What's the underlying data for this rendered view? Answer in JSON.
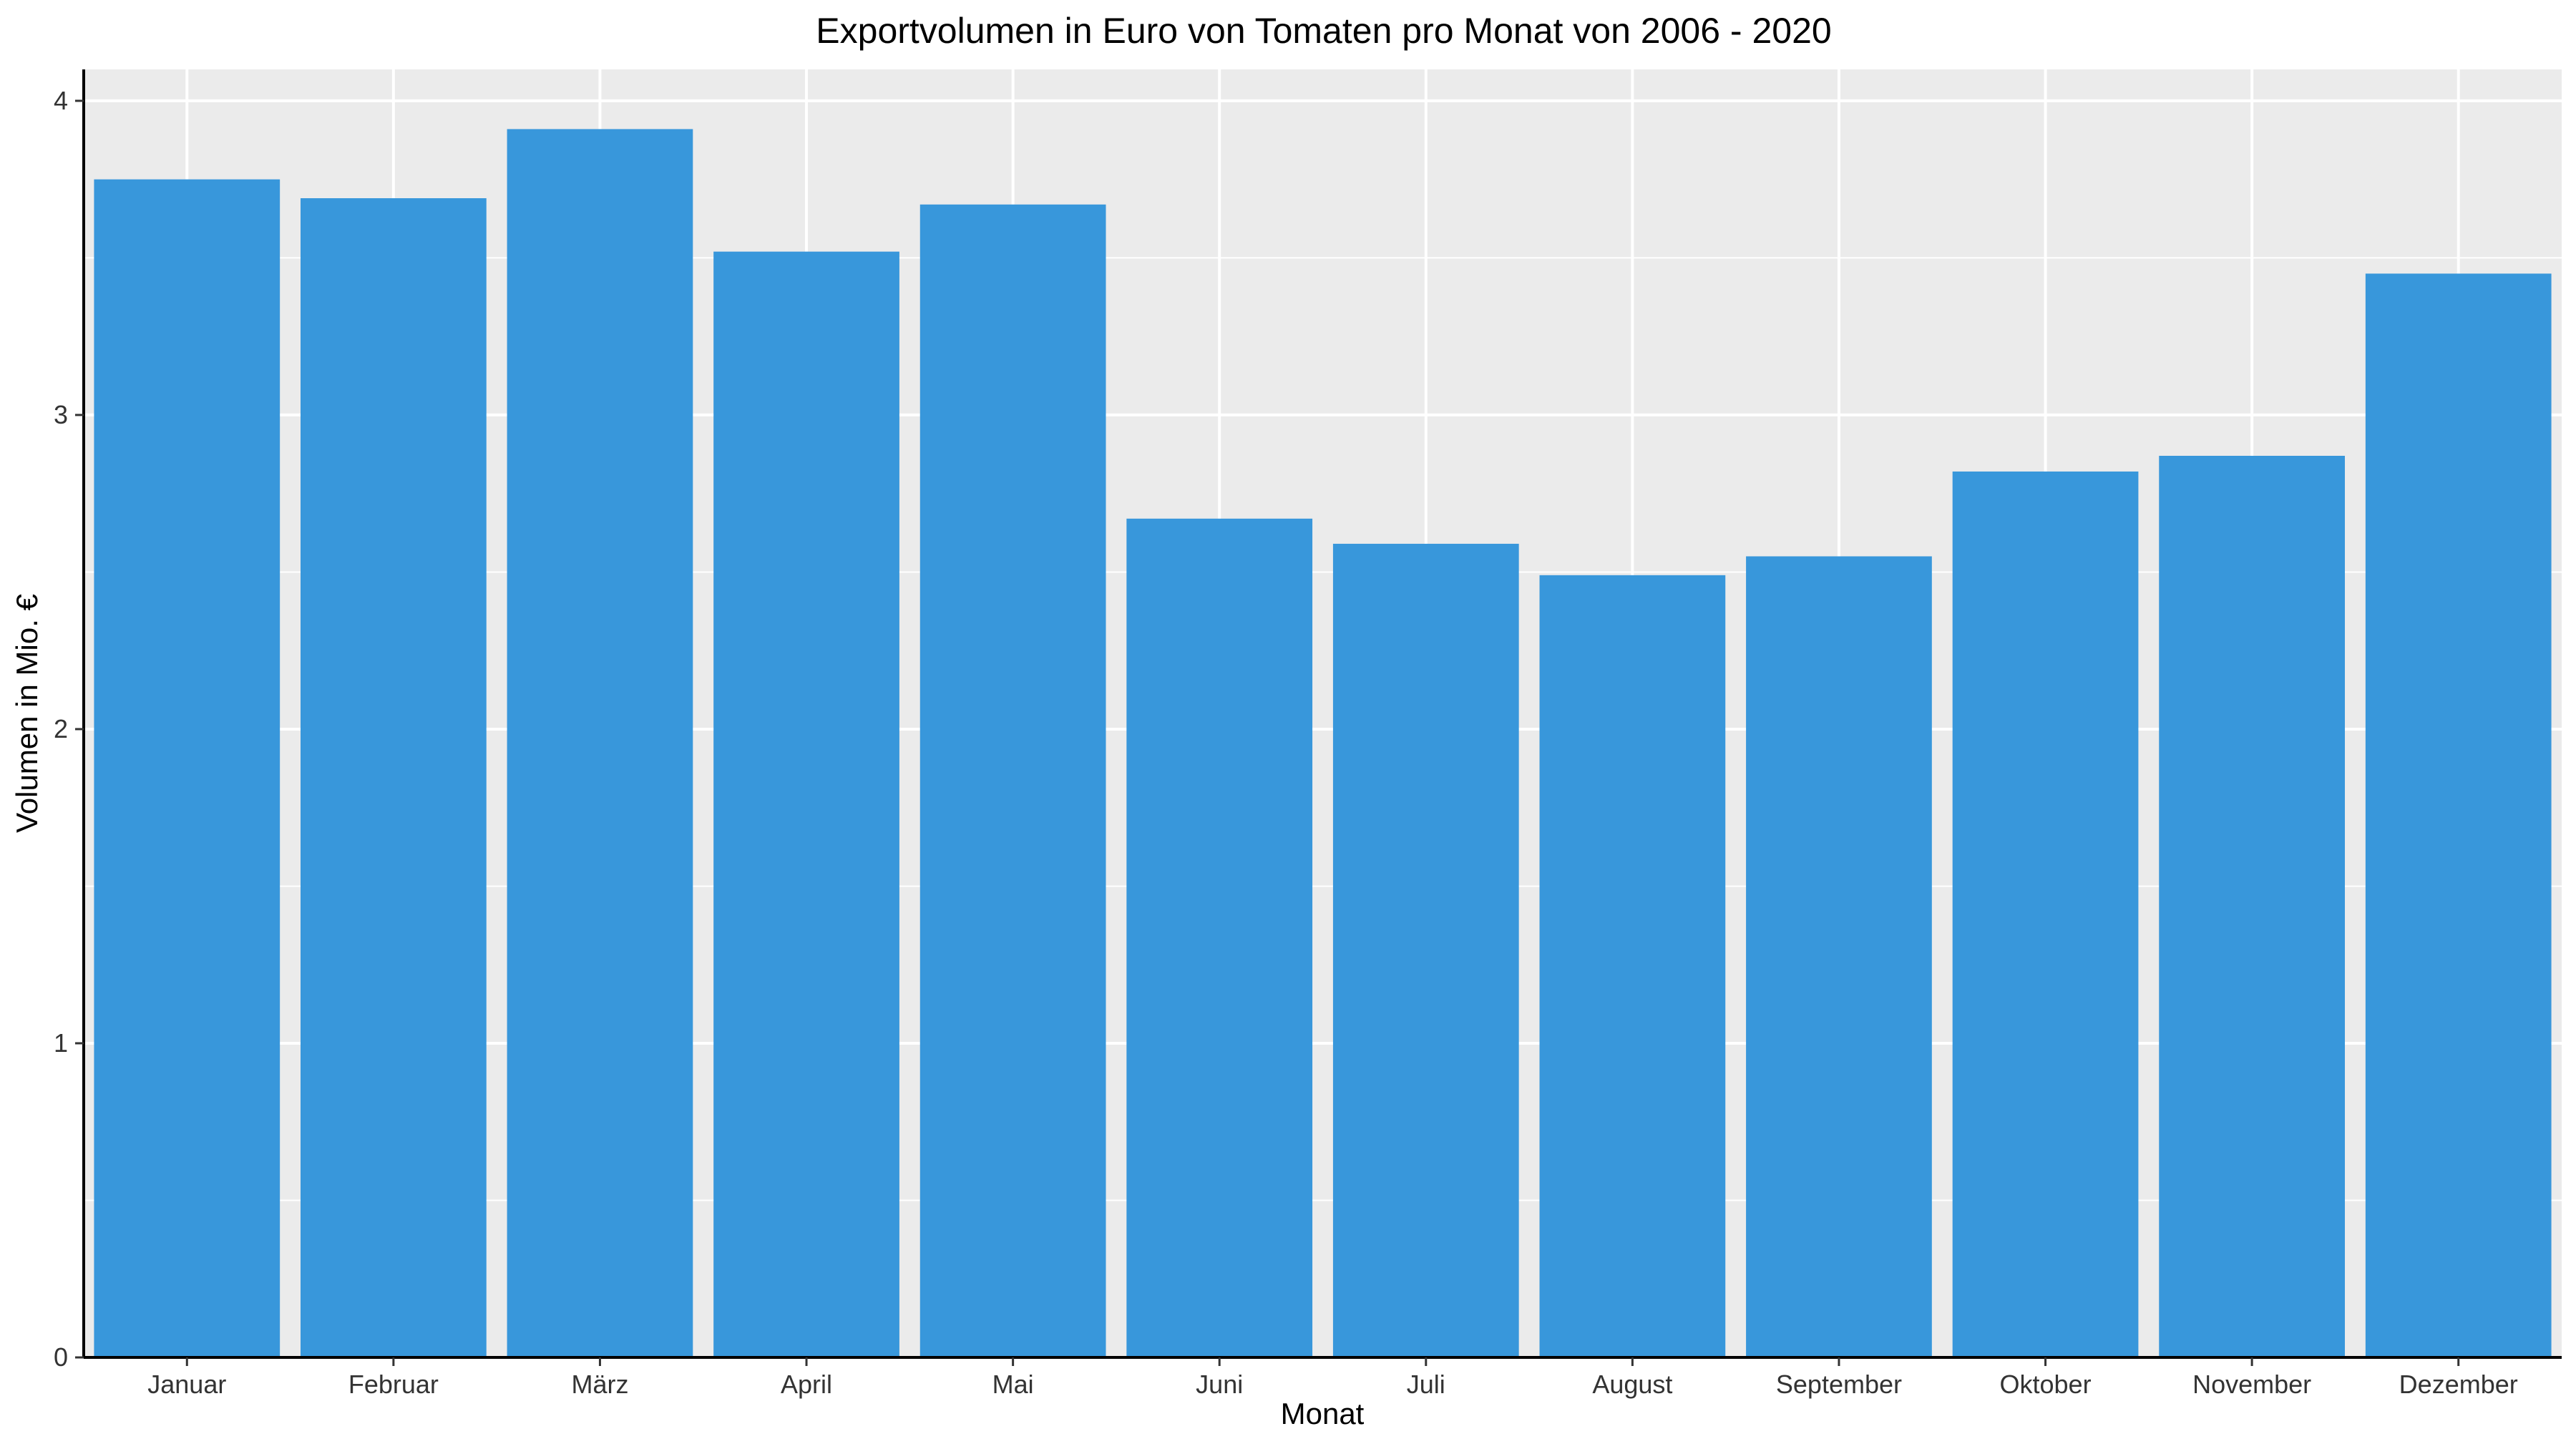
{
  "chart_data": {
    "type": "bar",
    "title": "Exportvolumen in Euro von Tomaten pro Monat von 2006 - 2020",
    "xlabel": "Monat",
    "ylabel": "Volumen in Mio. €",
    "categories": [
      "Januar",
      "Februar",
      "März",
      "April",
      "Mai",
      "Juni",
      "Juli",
      "August",
      "September",
      "Oktober",
      "November",
      "Dezember"
    ],
    "values": [
      3.75,
      3.69,
      3.91,
      3.52,
      3.67,
      2.67,
      2.59,
      2.49,
      2.55,
      2.82,
      2.87,
      3.45
    ],
    "ylim": [
      0,
      4.1
    ],
    "yticks": [
      "0",
      "1",
      "2",
      "3",
      "4"
    ],
    "grid": true,
    "legend": "none",
    "colors": {
      "bar": "#3897DB",
      "panel_background": "#EBEBEB",
      "grid": "#FFFFFF",
      "axis_line": "#000000"
    }
  }
}
